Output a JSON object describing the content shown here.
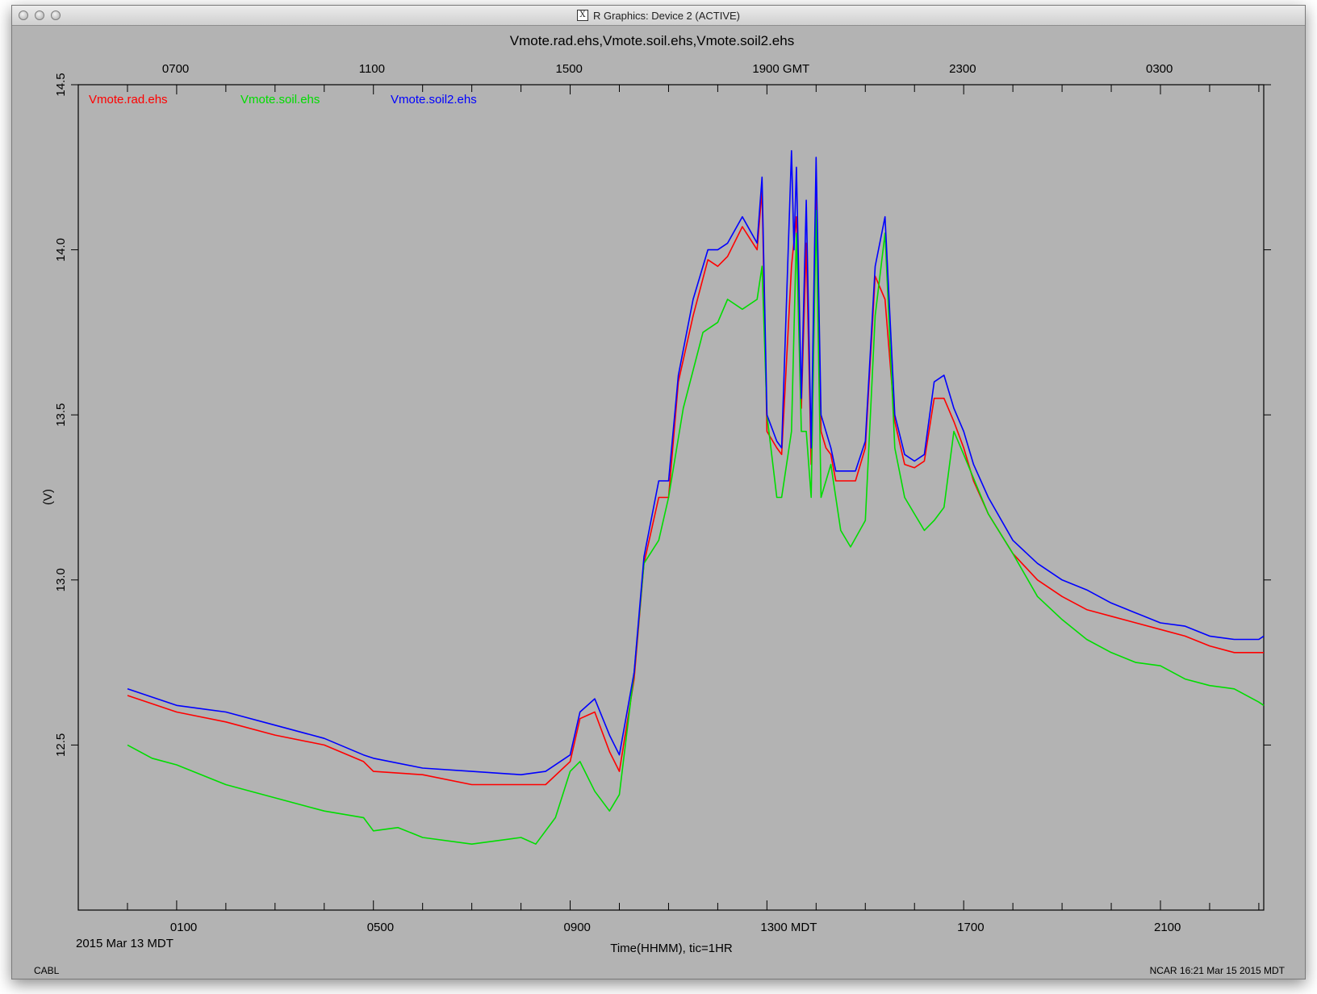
{
  "window": {
    "title": "R Graphics: Device 2 (ACTIVE)"
  },
  "chart_data": {
    "type": "line",
    "title": "Vmote.rad.ehs,Vmote.soil.ehs,Vmote.soil2.ehs",
    "ylabel": "(V)",
    "xlabel": "Time(HHMM), tic=1HR",
    "date_label": "2015 Mar 13 MDT",
    "xlim_hours_mdt": [
      -1,
      23.1
    ],
    "ylim": [
      12.0,
      14.5
    ],
    "yticks": [
      12.5,
      13.0,
      13.5,
      14.0,
      14.5
    ],
    "y_tick_labels": [
      "12.5",
      "13.0",
      "13.5",
      "14.0",
      "14.5"
    ],
    "x_major_ticks_hours_mdt": [
      1,
      5,
      9,
      13,
      17,
      21
    ],
    "x_bottom_labels": [
      "0100",
      "0500",
      "0900",
      "1300 MDT",
      "1700",
      "2100"
    ],
    "x_top_labels": [
      "0700",
      "1100",
      "1500",
      "1900 GMT",
      "2300",
      "0300"
    ],
    "footer_left": "CABL",
    "footer_right": "NCAR 16:21 Mar 15 2015 MDT",
    "legend_position": "top-left",
    "grid": false,
    "series": [
      {
        "name": "Vmote.rad.ehs",
        "color": "#ff0000",
        "x": [
          0,
          1,
          2,
          3,
          4,
          4.8,
          5,
          6,
          7,
          8,
          8.5,
          9,
          9.2,
          9.5,
          9.8,
          10,
          10.3,
          10.5,
          10.8,
          11,
          11.2,
          11.5,
          11.8,
          12,
          12.2,
          12.5,
          12.8,
          12.9,
          13,
          13.2,
          13.3,
          13.5,
          13.6,
          13.7,
          13.8,
          13.9,
          14,
          14.1,
          14.2,
          14.3,
          14.4,
          14.6,
          14.8,
          15,
          15.2,
          15.4,
          15.6,
          15.8,
          16,
          16.2,
          16.4,
          16.6,
          16.8,
          17,
          17.2,
          17.5,
          18,
          18.5,
          19,
          19.5,
          20,
          20.5,
          21,
          21.5,
          22,
          22.5,
          23,
          23.1
        ],
        "y": [
          12.65,
          12.6,
          12.57,
          12.53,
          12.5,
          12.45,
          12.42,
          12.41,
          12.38,
          12.38,
          12.38,
          12.45,
          12.58,
          12.6,
          12.48,
          12.42,
          12.7,
          13.05,
          13.25,
          13.25,
          13.6,
          13.8,
          13.97,
          13.95,
          13.98,
          14.07,
          14.0,
          14.18,
          13.45,
          13.4,
          13.38,
          13.95,
          14.1,
          13.52,
          14.02,
          13.35,
          14.22,
          13.45,
          13.4,
          13.38,
          13.3,
          13.3,
          13.3,
          13.4,
          13.92,
          13.85,
          13.48,
          13.35,
          13.34,
          13.36,
          13.55,
          13.55,
          13.48,
          13.4,
          13.3,
          13.2,
          13.08,
          13.0,
          12.95,
          12.91,
          12.89,
          12.87,
          12.85,
          12.83,
          12.8,
          12.78,
          12.78,
          12.78
        ]
      },
      {
        "name": "Vmote.soil.ehs",
        "color": "#00dd00",
        "x": [
          0,
          0.5,
          1,
          2,
          3,
          4,
          4.8,
          5,
          5.5,
          6,
          7,
          8,
          8.3,
          8.7,
          9,
          9.2,
          9.5,
          9.8,
          10,
          10.3,
          10.5,
          10.8,
          11,
          11.3,
          11.7,
          12,
          12.2,
          12.5,
          12.8,
          12.9,
          13,
          13.2,
          13.3,
          13.5,
          13.6,
          13.7,
          13.8,
          13.9,
          14,
          14.1,
          14.3,
          14.5,
          14.7,
          15,
          15.2,
          15.4,
          15.6,
          15.8,
          16,
          16.2,
          16.4,
          16.6,
          16.8,
          17,
          17.5,
          18,
          18.5,
          19,
          19.5,
          20,
          20.5,
          21,
          21.5,
          22,
          22.5,
          23,
          23.1
        ],
        "y": [
          12.5,
          12.46,
          12.44,
          12.38,
          12.34,
          12.3,
          12.28,
          12.24,
          12.25,
          12.22,
          12.2,
          12.22,
          12.2,
          12.28,
          12.42,
          12.45,
          12.36,
          12.3,
          12.35,
          12.72,
          13.05,
          13.12,
          13.25,
          13.52,
          13.75,
          13.78,
          13.85,
          13.82,
          13.85,
          13.95,
          13.5,
          13.25,
          13.25,
          13.45,
          14.05,
          13.45,
          13.45,
          13.25,
          14.12,
          13.25,
          13.35,
          13.15,
          13.1,
          13.18,
          13.8,
          14.05,
          13.4,
          13.25,
          13.2,
          13.15,
          13.18,
          13.22,
          13.45,
          13.38,
          13.2,
          13.08,
          12.95,
          12.88,
          12.82,
          12.78,
          12.75,
          12.74,
          12.7,
          12.68,
          12.67,
          12.63,
          12.62
        ]
      },
      {
        "name": "Vmote.soil2.ehs",
        "color": "#0000ff",
        "x": [
          0,
          1,
          2,
          3,
          4,
          4.8,
          5,
          6,
          7,
          8,
          8.5,
          9,
          9.2,
          9.5,
          9.8,
          10,
          10.3,
          10.5,
          10.8,
          11,
          11.2,
          11.5,
          11.8,
          12,
          12.2,
          12.5,
          12.8,
          12.9,
          13,
          13.2,
          13.3,
          13.5,
          13.55,
          13.6,
          13.7,
          13.8,
          13.9,
          14,
          14.1,
          14.2,
          14.3,
          14.4,
          14.6,
          14.8,
          15,
          15.2,
          15.4,
          15.6,
          15.8,
          16,
          16.2,
          16.4,
          16.6,
          16.8,
          17,
          17.2,
          17.5,
          18,
          18.5,
          19,
          19.5,
          20,
          20.5,
          21,
          21.5,
          22,
          22.5,
          23,
          23.1
        ],
        "y": [
          12.67,
          12.62,
          12.6,
          12.56,
          12.52,
          12.47,
          12.46,
          12.43,
          12.42,
          12.41,
          12.42,
          12.47,
          12.6,
          12.64,
          12.53,
          12.47,
          12.72,
          13.07,
          13.3,
          13.3,
          13.62,
          13.85,
          14.0,
          14.0,
          14.02,
          14.1,
          14.02,
          14.22,
          13.5,
          13.42,
          13.4,
          14.3,
          14.0,
          14.25,
          13.55,
          14.15,
          13.4,
          14.28,
          13.5,
          13.45,
          13.4,
          13.33,
          13.33,
          13.33,
          13.42,
          13.95,
          14.1,
          13.5,
          13.38,
          13.36,
          13.38,
          13.6,
          13.62,
          13.52,
          13.45,
          13.35,
          13.25,
          13.12,
          13.05,
          13.0,
          12.97,
          12.93,
          12.9,
          12.87,
          12.86,
          12.83,
          12.82,
          12.82,
          12.83
        ]
      }
    ]
  }
}
